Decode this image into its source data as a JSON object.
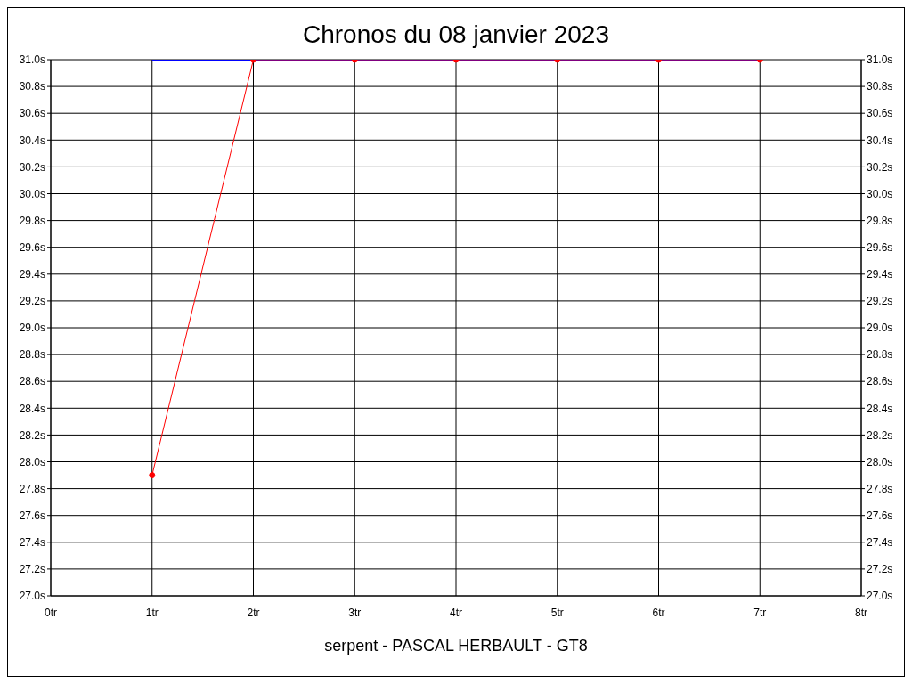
{
  "chart_data": {
    "type": "line",
    "title": "Chronos du 08 janvier 2023",
    "annotations": [
      "serpent - PASCAL HERBAULT - GT8"
    ],
    "series": [
      {
        "color": "#0000ff",
        "x": [
          1,
          2,
          3,
          4,
          5,
          6,
          7
        ],
        "values": [
          31.0,
          31.0,
          31.0,
          31.0,
          31.0,
          31.0,
          31.0
        ],
        "marker": "none"
      },
      {
        "color": "#ff0000",
        "x": [
          1,
          2,
          3,
          4,
          5,
          6,
          7
        ],
        "values": [
          27.9,
          31.0,
          31.0,
          31.0,
          31.0,
          31.0,
          31.0
        ],
        "marker": "circle"
      }
    ],
    "xlim": [
      0,
      8
    ],
    "xticks": [
      {
        "value": 0,
        "label": "0tr"
      },
      {
        "value": 1,
        "label": "1tr"
      },
      {
        "value": 2,
        "label": "2tr"
      },
      {
        "value": 3,
        "label": "3tr"
      },
      {
        "value": 4,
        "label": "4tr"
      },
      {
        "value": 5,
        "label": "5tr"
      },
      {
        "value": 6,
        "label": "6tr"
      },
      {
        "value": 7,
        "label": "7tr"
      },
      {
        "value": 8,
        "label": "8tr"
      }
    ],
    "ylim": [
      27.0,
      31.0
    ],
    "yticks": [
      {
        "value": 27.0,
        "label": "27.0s"
      },
      {
        "value": 27.2,
        "label": "27.2s"
      },
      {
        "value": 27.4,
        "label": "27.4s"
      },
      {
        "value": 27.6,
        "label": "27.6s"
      },
      {
        "value": 27.8,
        "label": "27.8s"
      },
      {
        "value": 28.0,
        "label": "28.0s"
      },
      {
        "value": 28.2,
        "label": "28.2s"
      },
      {
        "value": 28.4,
        "label": "28.4s"
      },
      {
        "value": 28.6,
        "label": "28.6s"
      },
      {
        "value": 28.8,
        "label": "28.8s"
      },
      {
        "value": 29.0,
        "label": "29.0s"
      },
      {
        "value": 29.2,
        "label": "29.2s"
      },
      {
        "value": 29.4,
        "label": "29.4s"
      },
      {
        "value": 29.6,
        "label": "29.6s"
      },
      {
        "value": 29.8,
        "label": "29.8s"
      },
      {
        "value": 30.0,
        "label": "30.0s"
      },
      {
        "value": 30.2,
        "label": "30.2s"
      },
      {
        "value": 30.4,
        "label": "30.4s"
      },
      {
        "value": 30.6,
        "label": "30.6s"
      },
      {
        "value": 30.8,
        "label": "30.8s"
      },
      {
        "value": 31.0,
        "label": "31.0s"
      }
    ],
    "y2lim": [
      27.0,
      31.0
    ],
    "y2ticks": [
      {
        "value": 27.0,
        "label": "27.0s"
      },
      {
        "value": 27.2,
        "label": "27.2s"
      },
      {
        "value": 27.4,
        "label": "27.4s"
      },
      {
        "value": 27.6,
        "label": "27.6s"
      },
      {
        "value": 27.8,
        "label": "27.8s"
      },
      {
        "value": 28.0,
        "label": "28.0s"
      },
      {
        "value": 28.2,
        "label": "28.2s"
      },
      {
        "value": 28.4,
        "label": "28.4s"
      },
      {
        "value": 28.6,
        "label": "28.6s"
      },
      {
        "value": 28.8,
        "label": "28.8s"
      },
      {
        "value": 29.0,
        "label": "29.0s"
      },
      {
        "value": 29.2,
        "label": "29.2s"
      },
      {
        "value": 29.4,
        "label": "29.4s"
      },
      {
        "value": 29.6,
        "label": "29.6s"
      },
      {
        "value": 29.8,
        "label": "29.8s"
      },
      {
        "value": 30.0,
        "label": "30.0s"
      },
      {
        "value": 30.2,
        "label": "30.2s"
      },
      {
        "value": 30.4,
        "label": "30.4s"
      },
      {
        "value": 30.6,
        "label": "30.6s"
      },
      {
        "value": 30.8,
        "label": "30.8s"
      },
      {
        "value": 31.0,
        "label": "31.0s"
      }
    ],
    "grid": true
  }
}
